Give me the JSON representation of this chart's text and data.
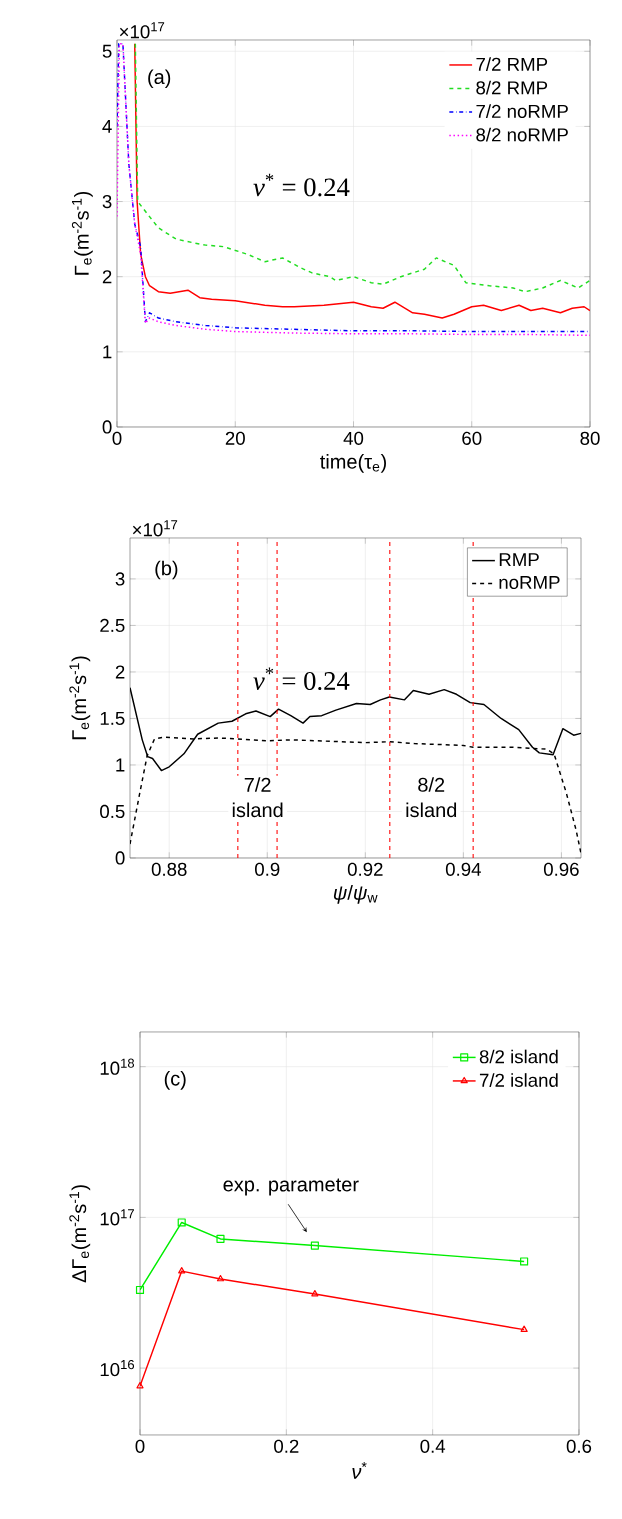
{
  "chart_data": [
    {
      "type": "line",
      "xlabel": "time(τ$_{e}$)",
      "ylabel": "Γ$_{e}$(m$^{-2}$s$^{-1}$)",
      "xlim": [
        0,
        80
      ],
      "ylim": [
        0,
        5.15
      ],
      "xticks": [
        0,
        20,
        40,
        60,
        80
      ],
      "yticks": [
        0,
        1,
        2,
        3,
        4,
        5
      ],
      "grid": true,
      "legend": "top right",
      "annotations": [
        "×10$^{17}$",
        "(a)",
        "*ν*$^{*}$ = 0.24"
      ],
      "series": [
        {
          "name": "7/2 RMP",
          "color": "#ff0000",
          "line_style": "solid",
          "x": [
            3.0,
            3.4,
            4.0,
            4.8,
            5.5,
            7,
            9,
            12,
            14,
            16,
            20,
            25,
            28,
            30,
            35,
            40,
            43,
            45,
            47,
            50,
            52,
            55,
            57,
            60,
            62,
            65,
            68,
            70,
            72,
            75,
            77,
            79,
            80
          ],
          "values": [
            5.1,
            3.0,
            2.3,
            2.0,
            1.88,
            1.8,
            1.78,
            1.82,
            1.72,
            1.7,
            1.68,
            1.62,
            1.6,
            1.6,
            1.62,
            1.66,
            1.6,
            1.58,
            1.66,
            1.52,
            1.5,
            1.45,
            1.5,
            1.6,
            1.62,
            1.55,
            1.62,
            1.55,
            1.58,
            1.52,
            1.58,
            1.6,
            1.55
          ]
        },
        {
          "name": "8/2 RMP",
          "color": "#22dd22",
          "line_style": "dashed",
          "x": [
            3.1,
            3.5,
            5,
            7,
            10,
            13,
            15,
            18,
            22,
            25,
            28,
            31,
            33,
            36,
            37,
            40,
            43,
            45,
            48,
            52,
            54,
            57,
            59,
            63,
            67,
            69,
            72,
            75,
            78,
            80
          ],
          "values": [
            5.1,
            3.0,
            2.85,
            2.65,
            2.5,
            2.45,
            2.42,
            2.4,
            2.3,
            2.2,
            2.25,
            2.12,
            2.05,
            2.0,
            1.95,
            2.0,
            1.92,
            1.9,
            2.0,
            2.1,
            2.25,
            2.15,
            1.92,
            1.88,
            1.85,
            1.8,
            1.85,
            1.95,
            1.85,
            1.95
          ]
        },
        {
          "name": "7/2 noRMP",
          "color": "#0000ff",
          "line_style": "dashdot",
          "x": [
            0,
            0.3,
            1,
            2,
            3,
            4,
            4.8,
            5.5,
            7,
            10,
            15,
            20,
            30,
            40,
            50,
            60,
            70,
            80
          ],
          "values": [
            4.0,
            5.1,
            5.1,
            3.5,
            2.7,
            2.4,
            1.4,
            1.52,
            1.45,
            1.4,
            1.35,
            1.32,
            1.3,
            1.28,
            1.28,
            1.27,
            1.27,
            1.27
          ]
        },
        {
          "name": "8/2 noRMP",
          "color": "#ff00ff",
          "line_style": "dotted",
          "x": [
            0,
            0.4,
            1,
            2,
            3,
            4,
            4.8,
            5.5,
            7,
            10,
            15,
            20,
            30,
            40,
            50,
            60,
            70,
            80
          ],
          "values": [
            2.8,
            5.1,
            5.1,
            3.5,
            2.7,
            2.3,
            1.38,
            1.45,
            1.4,
            1.35,
            1.3,
            1.27,
            1.25,
            1.24,
            1.24,
            1.23,
            1.23,
            1.22
          ]
        }
      ]
    },
    {
      "type": "line",
      "xlabel": "*ψ*/*ψ*$_{w}$",
      "ylabel": "Γ$_{e}$(m$^{-2}$s$^{-1}$)",
      "xlim": [
        0.872,
        0.964
      ],
      "ylim": [
        0,
        3.44
      ],
      "xticks": [
        0.88,
        0.9,
        0.92,
        0.94,
        0.96
      ],
      "yticks": [
        0,
        0.5,
        1,
        1.5,
        2,
        2.5,
        3
      ],
      "grid": true,
      "legend": "top right",
      "annotations": [
        "×10$^{17}$",
        "(b)",
        "*ν*$^{*}$ = 0.24",
        "7/2 island",
        "8/2 island"
      ],
      "ref_lines": [
        {
          "axis": "x",
          "value": 0.894,
          "color": "#ff0000",
          "line_style": "dashed"
        },
        {
          "axis": "x",
          "value": 0.902,
          "color": "#ff0000",
          "line_style": "dashed"
        },
        {
          "axis": "x",
          "value": 0.925,
          "color": "#ff0000",
          "line_style": "dashed"
        },
        {
          "axis": "x",
          "value": 0.942,
          "color": "#ff0000",
          "line_style": "dashed"
        }
      ],
      "series": [
        {
          "name": "RMP",
          "color": "#000000",
          "line_style": "solid",
          "x": [
            0.872,
            0.8745,
            0.8756,
            0.8766,
            0.8784,
            0.88,
            0.883,
            0.8858,
            0.89,
            0.8928,
            0.8956,
            0.8977,
            0.9006,
            0.9023,
            0.9048,
            0.9073,
            0.9087,
            0.9111,
            0.914,
            0.9182,
            0.921,
            0.9231,
            0.9249,
            0.928,
            0.9298,
            0.933,
            0.9361,
            0.9386,
            0.9414,
            0.9442,
            0.9477,
            0.9513,
            0.9541,
            0.9555,
            0.9583,
            0.9603,
            0.9625,
            0.964
          ],
          "values": [
            1.83,
            1.27,
            1.09,
            1.07,
            0.94,
            0.98,
            1.12,
            1.33,
            1.45,
            1.47,
            1.55,
            1.58,
            1.52,
            1.6,
            1.53,
            1.45,
            1.52,
            1.53,
            1.59,
            1.66,
            1.65,
            1.7,
            1.73,
            1.7,
            1.8,
            1.76,
            1.81,
            1.76,
            1.67,
            1.65,
            1.5,
            1.38,
            1.19,
            1.13,
            1.11,
            1.39,
            1.32,
            1.34
          ]
        },
        {
          "name": "noRMP",
          "color": "#000000",
          "line_style": "dashed",
          "x": [
            0.872,
            0.874,
            0.8755,
            0.877,
            0.879,
            0.885,
            0.89,
            0.894,
            0.9,
            0.905,
            0.91,
            0.915,
            0.92,
            0.925,
            0.93,
            0.935,
            0.94,
            0.942,
            0.95,
            0.957,
            0.9585,
            0.961,
            0.963,
            0.964
          ],
          "values": [
            0.15,
            0.7,
            1.1,
            1.28,
            1.3,
            1.28,
            1.29,
            1.28,
            1.26,
            1.27,
            1.26,
            1.25,
            1.24,
            1.25,
            1.23,
            1.22,
            1.21,
            1.19,
            1.19,
            1.17,
            1.12,
            0.7,
            0.3,
            0.05
          ]
        }
      ]
    },
    {
      "type": "line",
      "xlabel": "*ν*$^{*}$",
      "ylabel": "ΔΓ$_{e}$(m$^{-2}$s$^{-1}$)",
      "log": true,
      "xlim": [
        0,
        0.6
      ],
      "ylim": [
        3600000000000000.0,
        1.7e+18
      ],
      "xticks": [
        0,
        0.2,
        0.4,
        0.6
      ],
      "yticks": [
        {
          "value": 1e+16,
          "label": "10$^{16}$"
        },
        {
          "value": 1e+17,
          "label": "10$^{17}$"
        },
        {
          "value": 1e+18,
          "label": "10$^{18}$"
        }
      ],
      "grid": true,
      "legend": "top right",
      "annotations": [
        "(c)",
        {
          "text": "exp. parameter",
          "x": 0.239,
          "y": 6.5e+16
        }
      ],
      "x": [
        0,
        0.057,
        0.11,
        0.239,
        0.525
      ],
      "series": [
        {
          "name": "8/2 island",
          "color": "#00ee00",
          "marker": "square",
          "line_style": "solid",
          "values": [
            3.3e+16,
            9.25e+16,
            7.2e+16,
            6.5e+16,
            5.1e+16
          ]
        },
        {
          "name": "7/2 island",
          "color": "#ff0000",
          "marker": "triangle",
          "line_style": "solid",
          "values": [
            7600000000000000.0,
            4.4e+16,
            3.9e+16,
            3.1e+16,
            1.8e+16
          ]
        }
      ]
    }
  ]
}
